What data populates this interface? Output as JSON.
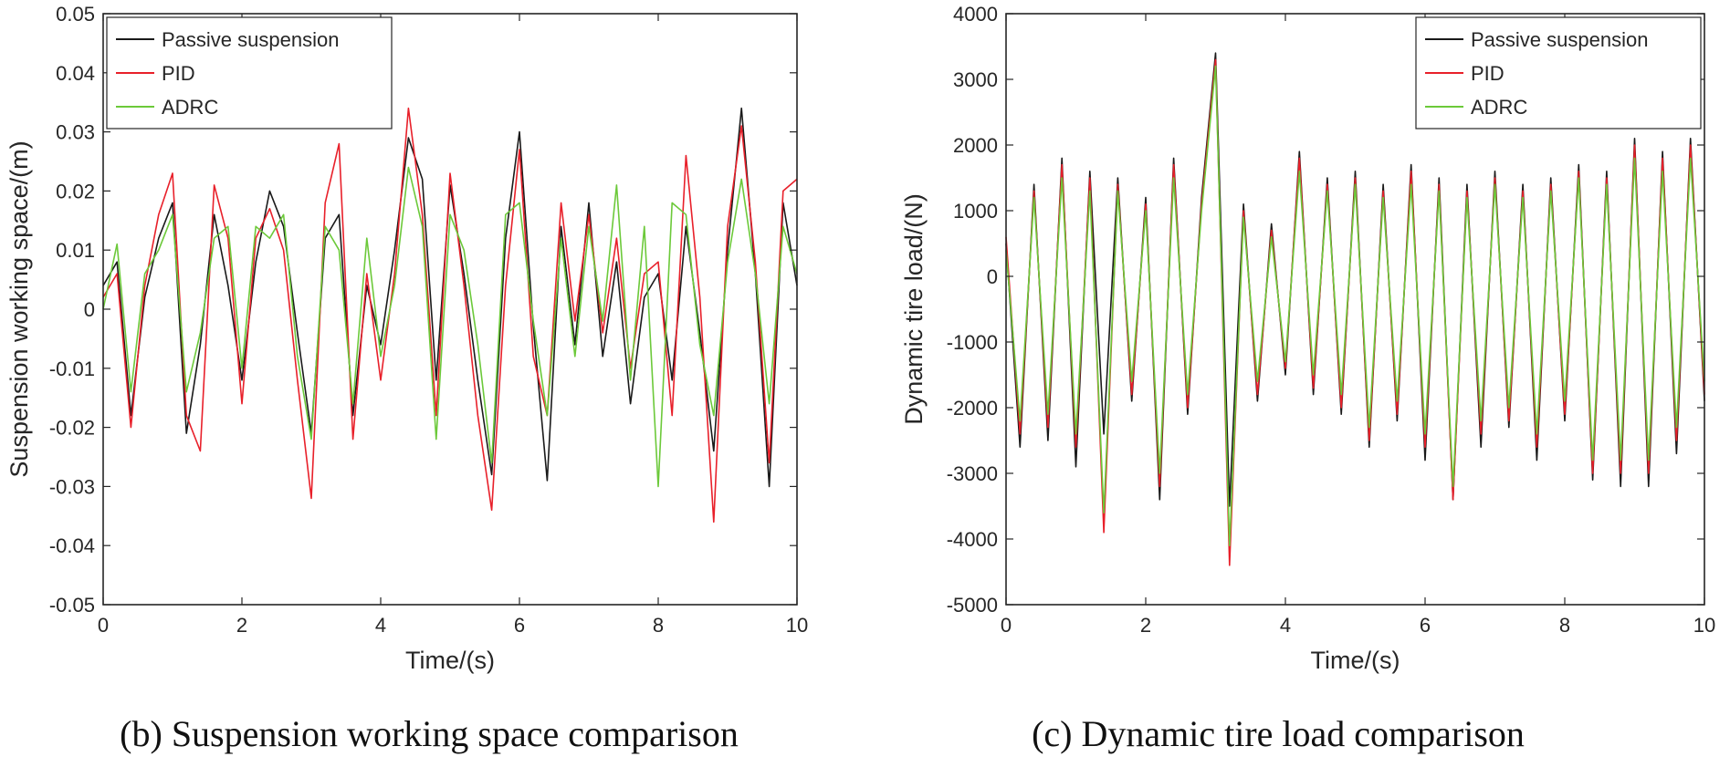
{
  "figure": {
    "captions": [
      "(b) Suspension working space comparison",
      "(c) Dynamic tire load comparison"
    ]
  },
  "colors": {
    "passive": "#1a1a1a",
    "pid": "#e8202a",
    "adrc": "#6cc93a",
    "axis": "#262626"
  },
  "chart_data": [
    {
      "type": "line",
      "title": "",
      "caption": "(b) Suspension working space comparison",
      "xlabel": "Time/(s)",
      "ylabel": "Suspension working space/(m)",
      "xlim": [
        0,
        10
      ],
      "ylim": [
        -0.05,
        0.05
      ],
      "xticks": [
        0,
        2,
        4,
        6,
        8,
        10
      ],
      "xtick_labels": [
        "0",
        "2",
        "4",
        "6",
        "8",
        "10"
      ],
      "yticks": [
        -0.05,
        -0.04,
        -0.03,
        -0.02,
        -0.01,
        0,
        0.01,
        0.02,
        0.03,
        0.04,
        0.05
      ],
      "ytick_labels": [
        "-0.05",
        "-0.04",
        "-0.03",
        "-0.02",
        "-0.01",
        "0",
        "0.01",
        "0.02",
        "0.03",
        "0.04",
        "0.05"
      ],
      "legend": {
        "position": "top-left",
        "entries": [
          "Passive suspension",
          "PID",
          "ADRC"
        ]
      },
      "grid": false,
      "x": [
        0,
        0.2,
        0.4,
        0.6,
        0.8,
        1.0,
        1.2,
        1.4,
        1.6,
        1.8,
        2.0,
        2.2,
        2.4,
        2.6,
        2.8,
        3.0,
        3.2,
        3.4,
        3.6,
        3.8,
        4.0,
        4.2,
        4.4,
        4.6,
        4.8,
        5.0,
        5.2,
        5.4,
        5.6,
        5.8,
        6.0,
        6.2,
        6.4,
        6.6,
        6.8,
        7.0,
        7.2,
        7.4,
        7.6,
        7.8,
        8.0,
        8.2,
        8.4,
        8.6,
        8.8,
        9.0,
        9.2,
        9.4,
        9.6,
        9.8,
        10.0
      ],
      "series": [
        {
          "name": "Passive suspension",
          "key": "passive",
          "values": [
            0.004,
            0.008,
            -0.018,
            0.002,
            0.012,
            0.018,
            -0.021,
            -0.006,
            0.016,
            0.004,
            -0.012,
            0.008,
            0.02,
            0.014,
            -0.004,
            -0.021,
            0.012,
            0.016,
            -0.018,
            0.004,
            -0.006,
            0.01,
            0.029,
            0.022,
            -0.012,
            0.021,
            0.006,
            -0.012,
            -0.028,
            0.012,
            0.03,
            -0.003,
            -0.029,
            0.014,
            -0.006,
            0.018,
            -0.008,
            0.008,
            -0.016,
            0.002,
            0.006,
            -0.012,
            0.014,
            -0.004,
            -0.024,
            0.01,
            0.034,
            0.006,
            -0.03,
            0.018,
            0.004
          ]
        },
        {
          "name": "PID",
          "key": "pid",
          "values": [
            0.002,
            0.006,
            -0.02,
            0.004,
            0.016,
            0.023,
            -0.018,
            -0.024,
            0.021,
            0.012,
            -0.016,
            0.012,
            0.017,
            0.01,
            -0.012,
            -0.032,
            0.018,
            0.028,
            -0.022,
            0.006,
            -0.012,
            0.006,
            0.034,
            0.016,
            -0.018,
            0.023,
            0.004,
            -0.018,
            -0.034,
            0.004,
            0.027,
            -0.008,
            -0.018,
            0.018,
            -0.002,
            0.016,
            -0.004,
            0.012,
            -0.01,
            0.006,
            0.008,
            -0.018,
            0.026,
            0.002,
            -0.036,
            0.014,
            0.031,
            0.008,
            -0.026,
            0.02,
            0.022
          ]
        },
        {
          "name": "ADRC",
          "key": "adrc",
          "values": [
            0.0,
            0.011,
            -0.014,
            0.006,
            0.01,
            0.016,
            -0.014,
            -0.004,
            0.012,
            0.014,
            -0.01,
            0.014,
            0.012,
            0.016,
            -0.008,
            -0.022,
            0.014,
            0.01,
            -0.016,
            0.012,
            -0.008,
            0.004,
            0.024,
            0.014,
            -0.022,
            0.016,
            0.01,
            -0.006,
            -0.026,
            0.016,
            0.018,
            -0.002,
            -0.018,
            0.012,
            -0.008,
            0.014,
            -0.002,
            0.021,
            -0.012,
            0.014,
            -0.03,
            0.018,
            0.016,
            -0.006,
            -0.018,
            0.008,
            0.022,
            0.006,
            -0.016,
            0.014,
            0.006
          ]
        }
      ]
    },
    {
      "type": "line",
      "title": "",
      "caption": "(c) Dynamic tire load comparison",
      "xlabel": "Time/(s)",
      "ylabel": "Dynamic tire load/(N)",
      "xlim": [
        0,
        10
      ],
      "ylim": [
        -5000,
        4000
      ],
      "xticks": [
        0,
        2,
        4,
        6,
        8,
        10
      ],
      "xtick_labels": [
        "0",
        "2",
        "4",
        "6",
        "8",
        "10"
      ],
      "yticks": [
        -5000,
        -4000,
        -3000,
        -2000,
        -1000,
        0,
        1000,
        2000,
        3000,
        4000
      ],
      "ytick_labels": [
        "-5000",
        "-4000",
        "-3000",
        "-2000",
        "-1000",
        "0",
        "1000",
        "2000",
        "3000",
        "4000"
      ],
      "legend": {
        "position": "top-right",
        "entries": [
          "Passive suspension",
          "PID",
          "ADRC"
        ]
      },
      "grid": false,
      "x": [
        0,
        0.2,
        0.4,
        0.6,
        0.8,
        1.0,
        1.2,
        1.4,
        1.6,
        1.8,
        2.0,
        2.2,
        2.4,
        2.6,
        2.8,
        3.0,
        3.2,
        3.4,
        3.6,
        3.8,
        4.0,
        4.2,
        4.4,
        4.6,
        4.8,
        5.0,
        5.2,
        5.4,
        5.6,
        5.8,
        6.0,
        6.2,
        6.4,
        6.6,
        6.8,
        7.0,
        7.2,
        7.4,
        7.6,
        7.8,
        8.0,
        8.2,
        8.4,
        8.6,
        8.8,
        9.0,
        9.2,
        9.4,
        9.6,
        9.8,
        10.0
      ],
      "series": [
        {
          "name": "Passive suspension",
          "key": "passive",
          "values": [
            500,
            -2600,
            1400,
            -2500,
            1800,
            -2900,
            1600,
            -2400,
            1500,
            -1900,
            1200,
            -3400,
            1800,
            -2100,
            1200,
            3400,
            -3500,
            1100,
            -1900,
            800,
            -1500,
            1900,
            -1800,
            1500,
            -2100,
            1600,
            -2600,
            1400,
            -2200,
            1700,
            -2800,
            1500,
            -3400,
            1400,
            -2600,
            1600,
            -2300,
            1400,
            -2800,
            1500,
            -2200,
            1700,
            -3100,
            1600,
            -3200,
            2100,
            -3200,
            1900,
            -2700,
            2100,
            -1900
          ]
        },
        {
          "name": "PID",
          "key": "pid",
          "values": [
            600,
            -2400,
            1300,
            -2300,
            1700,
            -2600,
            1500,
            -3900,
            1400,
            -1800,
            1100,
            -3200,
            1700,
            -2000,
            1100,
            3300,
            -4400,
            1000,
            -1800,
            700,
            -1400,
            1800,
            -1700,
            1400,
            -2000,
            1500,
            -2500,
            1300,
            -2100,
            1600,
            -2600,
            1400,
            -3400,
            1300,
            -2400,
            1500,
            -2200,
            1300,
            -2600,
            1400,
            -2100,
            1600,
            -3000,
            1500,
            -3000,
            2000,
            -3000,
            1800,
            -2500,
            2000,
            -1800
          ]
        },
        {
          "name": "ADRC",
          "key": "adrc",
          "values": [
            400,
            -2200,
            1200,
            -2100,
            1500,
            -2400,
            1300,
            -3600,
            1300,
            -1600,
            1000,
            -3000,
            1500,
            -1800,
            1000,
            3200,
            -4100,
            900,
            -1600,
            600,
            -1300,
            1600,
            -1500,
            1300,
            -1800,
            1400,
            -2300,
            1200,
            -1900,
            1400,
            -2400,
            1300,
            -3200,
            1200,
            -2200,
            1400,
            -2000,
            1200,
            -2400,
            1300,
            -1900,
            1500,
            -2800,
            1400,
            -2800,
            1800,
            -2800,
            1600,
            -2300,
            1800,
            -1600
          ]
        }
      ]
    }
  ]
}
